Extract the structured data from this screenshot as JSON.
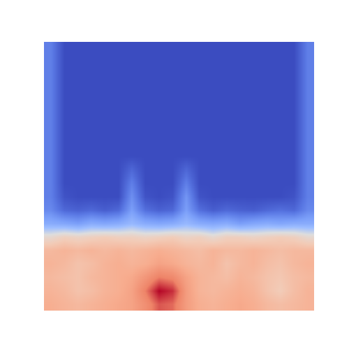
{
  "chart_data": {
    "type": "heatmap",
    "tick_labels": false,
    "zlim": [
      0,
      1
    ],
    "z": [
      [
        0.15,
        0,
        0,
        0,
        0,
        0,
        0,
        0,
        0,
        0,
        0,
        0,
        0,
        0,
        0,
        0,
        0,
        0,
        0,
        0.15
      ],
      [
        0.15,
        0,
        0,
        0,
        0,
        0,
        0,
        0,
        0,
        0,
        0,
        0,
        0,
        0,
        0,
        0,
        0,
        0,
        0,
        0.15
      ],
      [
        0.15,
        0,
        0,
        0,
        0,
        0,
        0,
        0,
        0,
        0,
        0,
        0,
        0,
        0,
        0,
        0,
        0,
        0,
        0,
        0.15
      ],
      [
        0.15,
        0,
        0,
        0,
        0,
        0,
        0,
        0,
        0,
        0,
        0,
        0,
        0,
        0,
        0,
        0,
        0,
        0,
        0,
        0.15
      ],
      [
        0.15,
        0,
        0,
        0,
        0,
        0,
        0,
        0,
        0,
        0,
        0,
        0,
        0,
        0,
        0,
        0,
        0,
        0,
        0,
        0.15
      ],
      [
        0.15,
        0,
        0,
        0,
        0,
        0,
        0,
        0,
        0,
        0,
        0,
        0,
        0,
        0,
        0,
        0,
        0,
        0,
        0,
        0.15
      ],
      [
        0.15,
        0,
        0,
        0,
        0,
        0,
        0,
        0,
        0,
        0,
        0,
        0,
        0,
        0,
        0,
        0,
        0,
        0,
        0,
        0.15
      ],
      [
        0.15,
        0,
        0,
        0,
        0,
        0,
        0,
        0,
        0,
        0,
        0,
        0,
        0,
        0,
        0,
        0,
        0,
        0,
        0,
        0.15
      ],
      [
        0.15,
        0,
        0,
        0,
        0,
        0,
        0,
        0,
        0,
        0,
        0,
        0,
        0,
        0,
        0,
        0,
        0,
        0,
        0,
        0.15
      ],
      [
        0.15,
        0,
        0,
        0,
        0,
        0,
        0.08,
        0,
        0,
        0,
        0.08,
        0,
        0,
        0,
        0,
        0,
        0,
        0,
        0,
        0.15
      ],
      [
        0.15,
        0,
        0,
        0,
        0,
        0,
        0.15,
        0,
        0,
        0,
        0.15,
        0,
        0,
        0,
        0,
        0,
        0,
        0,
        0,
        0.15
      ],
      [
        0.15,
        0.02,
        0,
        0,
        0,
        0,
        0.2,
        0.02,
        0,
        0.02,
        0.22,
        0.02,
        0,
        0,
        0,
        0,
        0,
        0,
        0.02,
        0.15
      ],
      [
        0.18,
        0.08,
        0.06,
        0.08,
        0.05,
        0.08,
        0.25,
        0.1,
        0.06,
        0.08,
        0.25,
        0.1,
        0.05,
        0.08,
        0.06,
        0.05,
        0.08,
        0.1,
        0.08,
        0.18
      ],
      [
        0.3,
        0.28,
        0.25,
        0.3,
        0.28,
        0.3,
        0.35,
        0.3,
        0.28,
        0.3,
        0.35,
        0.3,
        0.28,
        0.3,
        0.25,
        0.28,
        0.3,
        0.28,
        0.3,
        0.3
      ],
      [
        0.55,
        0.6,
        0.58,
        0.6,
        0.62,
        0.6,
        0.6,
        0.58,
        0.6,
        0.62,
        0.58,
        0.6,
        0.55,
        0.6,
        0.6,
        0.58,
        0.6,
        0.62,
        0.6,
        0.55
      ],
      [
        0.7,
        0.72,
        0.7,
        0.72,
        0.7,
        0.72,
        0.7,
        0.72,
        0.74,
        0.72,
        0.7,
        0.68,
        0.72,
        0.7,
        0.7,
        0.72,
        0.7,
        0.68,
        0.7,
        0.7
      ],
      [
        0.72,
        0.7,
        0.66,
        0.68,
        0.72,
        0.74,
        0.72,
        0.74,
        0.78,
        0.76,
        0.72,
        0.7,
        0.72,
        0.66,
        0.7,
        0.72,
        0.68,
        0.66,
        0.7,
        0.72
      ],
      [
        0.7,
        0.68,
        0.66,
        0.7,
        0.72,
        0.74,
        0.76,
        0.82,
        0.88,
        0.86,
        0.78,
        0.72,
        0.7,
        0.68,
        0.72,
        0.7,
        0.66,
        0.64,
        0.68,
        0.7
      ],
      [
        0.72,
        0.7,
        0.66,
        0.68,
        0.72,
        0.74,
        0.78,
        0.88,
        1.0,
        0.96,
        0.8,
        0.72,
        0.7,
        0.72,
        0.74,
        0.72,
        0.66,
        0.62,
        0.68,
        0.72
      ],
      [
        0.74,
        0.72,
        0.7,
        0.72,
        0.74,
        0.76,
        0.78,
        0.84,
        0.92,
        0.9,
        0.8,
        0.74,
        0.72,
        0.74,
        0.76,
        0.74,
        0.7,
        0.68,
        0.7,
        0.72
      ]
    ]
  }
}
